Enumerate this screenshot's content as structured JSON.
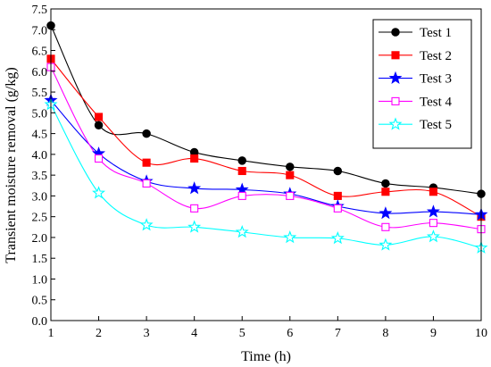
{
  "chart_data": {
    "type": "line",
    "xlabel": "Time (h)",
    "ylabel": "Transient moisture removal (g/kg)",
    "xlim": [
      1,
      10
    ],
    "ylim": [
      0,
      7.5
    ],
    "x_ticks": [
      "1",
      "2",
      "3",
      "4",
      "5",
      "6",
      "7",
      "8",
      "9",
      "10"
    ],
    "y_ticks": [
      "0.0",
      "0.5",
      "1.0",
      "1.5",
      "2.0",
      "2.5",
      "3.0",
      "3.5",
      "4.0",
      "4.5",
      "5.0",
      "5.5",
      "6.0",
      "6.5",
      "7.0",
      "7.5"
    ],
    "grid": false,
    "legend_position": "top-right",
    "x": [
      1,
      2,
      3,
      4,
      5,
      6,
      7,
      8,
      9,
      10
    ],
    "series": [
      {
        "name": "Test 1",
        "color": "#000000",
        "marker": "circle",
        "filled": true,
        "values": [
          7.1,
          4.7,
          4.5,
          4.05,
          3.85,
          3.7,
          3.6,
          3.3,
          3.2,
          3.05
        ]
      },
      {
        "name": "Test 2",
        "color": "#ff0000",
        "marker": "square",
        "filled": true,
        "values": [
          6.3,
          4.9,
          3.8,
          3.9,
          3.6,
          3.5,
          3.0,
          3.1,
          3.1,
          2.5
        ]
      },
      {
        "name": "Test 3",
        "color": "#0000ff",
        "marker": "star",
        "filled": true,
        "values": [
          5.3,
          4.02,
          3.35,
          3.18,
          3.15,
          3.05,
          2.75,
          2.58,
          2.62,
          2.55
        ]
      },
      {
        "name": "Test 4",
        "color": "#ff00ff",
        "marker": "square",
        "filled": false,
        "values": [
          6.1,
          3.9,
          3.3,
          2.7,
          3.0,
          3.0,
          2.7,
          2.25,
          2.35,
          2.2
        ]
      },
      {
        "name": "Test 5",
        "color": "#00ffff",
        "marker": "star",
        "filled": false,
        "values": [
          5.2,
          3.07,
          2.3,
          2.25,
          2.13,
          2.0,
          1.98,
          1.82,
          2.02,
          1.75
        ]
      }
    ]
  }
}
